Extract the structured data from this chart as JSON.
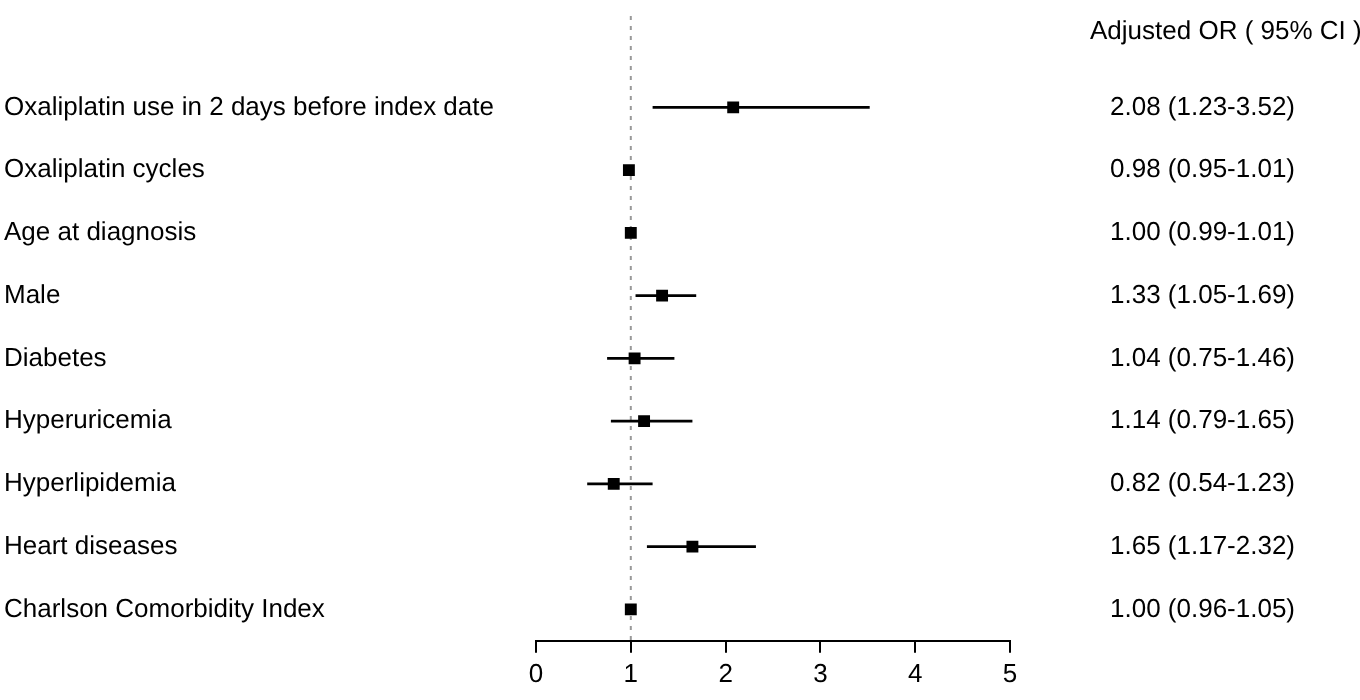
{
  "chart_data": {
    "type": "scatter",
    "orientation": "horizontal",
    "categories": [
      "Oxaliplatin use in 2 days before index date",
      "Oxaliplatin cycles",
      "Age at diagnosis",
      "Male",
      "Diabetes",
      "Hyperuricemia",
      "Hyperlipidemia",
      "Heart diseases",
      "Charlson Comorbidity Index"
    ],
    "color": "#000000",
    "values": [
      2.08,
      0.98,
      1.0,
      1.33,
      1.04,
      1.14,
      0.82,
      1.65,
      1.0
    ],
    "errors": [
      [
        1.23,
        3.52
      ],
      [
        0.95,
        1.01
      ],
      [
        0.99,
        1.01
      ],
      [
        1.05,
        1.69
      ],
      [
        0.75,
        1.46
      ],
      [
        0.79,
        1.65
      ],
      [
        0.54,
        1.23
      ],
      [
        1.17,
        2.32
      ],
      [
        0.96,
        1.05
      ]
    ],
    "value_labels": [
      "2.08 (1.23-3.52)",
      "0.98 (0.95-1.01)",
      "1.00 (0.99-1.01)",
      "1.33 (1.05-1.69)",
      "1.04 (0.75-1.46)",
      "1.14 (0.79-1.65)",
      "0.82 (0.54-1.23)",
      "1.65 (1.17-2.32)",
      "1.00 (0.96-1.05)"
    ],
    "xlim": [
      0,
      5
    ],
    "xticks": [
      0,
      1,
      2,
      3,
      4,
      5
    ],
    "ref_lines": [
      {
        "axis": "x",
        "value": 1,
        "color": "#999999",
        "line_style": "dotted"
      }
    ],
    "annotations": [
      "Adjusted OR ( 95% CI )"
    ],
    "marker": "square",
    "grid": false,
    "legend": false
  }
}
